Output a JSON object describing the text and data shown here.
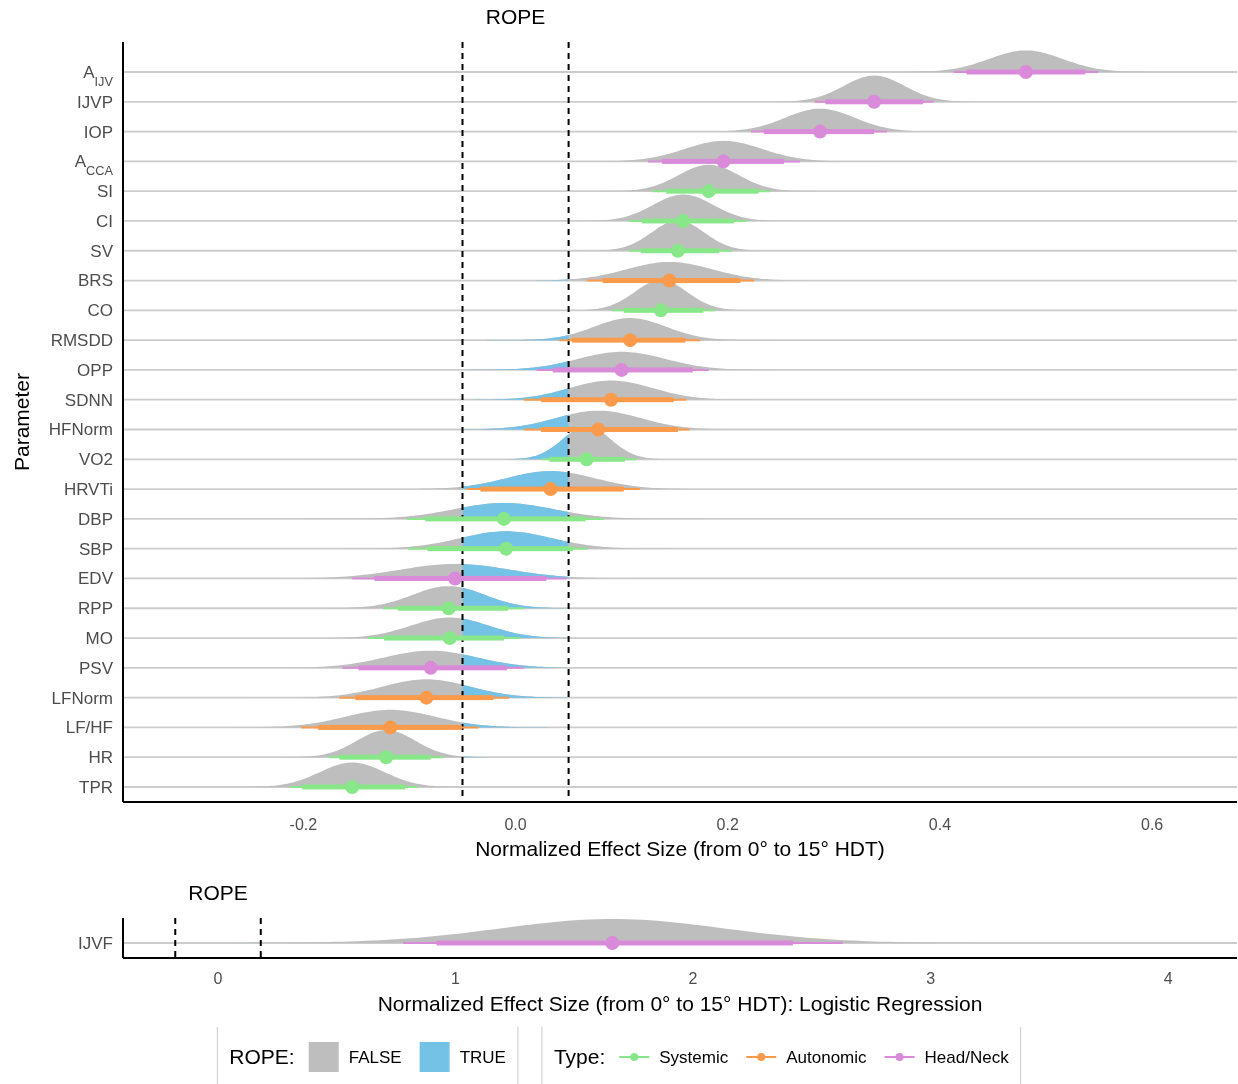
{
  "chart_data": [
    {
      "type": "scatter",
      "orientation": "horizontal",
      "xlabel": "Normalized Effect Size (from 0° to 15° HDT)",
      "ylabel": "Parameter",
      "legend_title": "ROPE:",
      "legend": "bottom",
      "grid": "y",
      "marker": "circle",
      "annotations": [
        "ROPE",
        "Type:"
      ],
      "categories": [
        "A$_{IJV}$",
        "IJVP",
        "IOP",
        "A$_{CCA}$",
        "SI",
        "CI",
        "SV",
        "BRS",
        "CO",
        "RMSDD",
        "OPP",
        "SDNN",
        "HFNorm",
        "VO2",
        "HRVTi",
        "DBP",
        "SBP",
        "EDV",
        "RPP",
        "MO",
        "PSV",
        "LFNorm",
        "LF/HF",
        "HR",
        "TPR"
      ],
      "xlim": [
        -0.37,
        0.68
      ],
      "xticks": [
        -0.2,
        {
          "value": 0,
          "label": "0.0"
        },
        0.2,
        0.4,
        0.6
      ],
      "ref_lines": [
        {
          "axis": "x",
          "value": -0.05,
          "line_style": "dashed",
          "color": "#000000"
        },
        {
          "axis": "x",
          "value": 0.05,
          "line_style": "dashed",
          "color": "#000000"
        }
      ],
      "series": [
        {
          "name": "FALSE",
          "type": "area",
          "color": "#bebebe",
          "values": [
            null,
            null,
            null,
            null,
            null,
            null,
            null,
            null,
            null,
            null,
            null,
            null,
            null,
            null,
            null,
            null,
            null,
            null,
            null,
            null,
            null,
            null,
            null,
            null,
            null
          ]
        },
        {
          "name": "TRUE",
          "type": "area",
          "color": "#74c2e6",
          "values": [
            null,
            null,
            null,
            null,
            null,
            null,
            null,
            null,
            null,
            null,
            null,
            null,
            null,
            null,
            null,
            null,
            null,
            null,
            null,
            null,
            null,
            null,
            null,
            null,
            null
          ]
        },
        {
          "name": "Systemic",
          "color": "#88e788",
          "values": [
            null,
            null,
            null,
            null,
            0.182,
            0.158,
            0.153,
            null,
            0.137,
            null,
            null,
            null,
            null,
            0.067,
            null,
            -0.011,
            -0.009,
            null,
            -0.063,
            -0.062,
            null,
            null,
            null,
            -0.122,
            -0.154
          ],
          "errors": [
            null,
            null,
            null,
            null,
            [
              0.129,
              0.24
            ],
            [
              0.107,
              0.218
            ],
            [
              0.107,
              0.204
            ],
            null,
            [
              0.091,
              0.188
            ],
            null,
            null,
            null,
            null,
            [
              0.025,
              0.114
            ],
            null,
            [
              -0.102,
              0.083
            ],
            [
              -0.101,
              0.068
            ],
            null,
            [
              -0.125,
              0.008
            ],
            [
              -0.139,
              0.004
            ],
            null,
            null,
            null,
            [
              -0.176,
              -0.068
            ],
            [
              -0.212,
              -0.092
            ]
          ]
        },
        {
          "name": "Autonomic",
          "color": "#fb9a4b",
          "values": [
            null,
            null,
            null,
            null,
            null,
            null,
            null,
            0.145,
            null,
            0.108,
            null,
            0.09,
            0.078,
            null,
            0.033,
            null,
            null,
            null,
            null,
            null,
            null,
            -0.084,
            -0.118,
            null,
            null
          ],
          "errors": [
            null,
            null,
            null,
            null,
            null,
            null,
            null,
            [
              0.067,
              0.225
            ],
            null,
            [
              0.041,
              0.174
            ],
            null,
            [
              0.008,
              0.161
            ],
            [
              0.008,
              0.164
            ],
            null,
            [
              -0.046,
              0.117
            ],
            null,
            null,
            null,
            null,
            null,
            null,
            [
              -0.166,
              -0.006
            ],
            [
              -0.202,
              -0.035
            ],
            null,
            null
          ]
        },
        {
          "name": "Head/Neck",
          "color": "#d98ad9",
          "values": [
            0.481,
            0.338,
            0.287,
            0.196,
            null,
            null,
            null,
            null,
            null,
            null,
            0.1,
            null,
            null,
            null,
            null,
            null,
            null,
            -0.057,
            null,
            null,
            -0.08,
            null,
            null,
            null,
            null
          ],
          "errors": [
            [
              0.413,
              0.549
            ],
            [
              0.282,
              0.394
            ],
            [
              0.222,
              0.35
            ],
            [
              0.125,
              0.268
            ],
            null,
            null,
            null,
            null,
            null,
            null,
            [
              0.02,
              0.182
            ],
            null,
            null,
            null,
            null,
            null,
            null,
            [
              -0.154,
              0.048
            ],
            null,
            null,
            [
              -0.163,
              0.008
            ],
            null,
            null,
            null,
            null
          ]
        },
        {
          "type": "bar",
          "color": "#88e788",
          "base": [
            null,
            null,
            null,
            null,
            0.142,
            0.119,
            0.118,
            null,
            0.102,
            null,
            null,
            null,
            null,
            0.032,
            null,
            -0.085,
            -0.083,
            null,
            -0.111,
            -0.124,
            null,
            null,
            null,
            -0.166,
            -0.201
          ],
          "values": [
            null,
            null,
            null,
            null,
            0.087,
            0.087,
            0.074,
            null,
            0.075,
            null,
            null,
            null,
            null,
            0.071,
            null,
            0.151,
            0.137,
            null,
            0.104,
            0.113,
            null,
            null,
            null,
            0.086,
            0.097
          ]
        },
        {
          "type": "bar",
          "color": "#fb9a4b",
          "base": [
            null,
            null,
            null,
            null,
            null,
            null,
            null,
            0.082,
            null,
            0.053,
            null,
            0.024,
            0.024,
            null,
            -0.033,
            null,
            null,
            null,
            null,
            null,
            null,
            -0.151,
            -0.186,
            null,
            null
          ],
          "values": [
            null,
            null,
            null,
            null,
            null,
            null,
            null,
            0.13,
            null,
            0.107,
            null,
            0.125,
            0.129,
            null,
            0.135,
            null,
            null,
            null,
            null,
            null,
            null,
            0.13,
            0.135,
            null,
            null
          ]
        },
        {
          "type": "bar",
          "color": "#d98ad9",
          "base": [
            0.425,
            0.292,
            0.234,
            0.138,
            null,
            null,
            null,
            null,
            null,
            null,
            0.035,
            null,
            null,
            null,
            null,
            null,
            null,
            -0.133,
            null,
            null,
            -0.148,
            null,
            null,
            null,
            null
          ],
          "values": [
            0.112,
            0.092,
            0.104,
            0.115,
            null,
            null,
            null,
            null,
            null,
            null,
            0.132,
            null,
            null,
            null,
            null,
            null,
            null,
            0.162,
            null,
            null,
            0.14,
            null,
            null,
            null,
            null
          ]
        }
      ]
    },
    {
      "type": "scatter",
      "orientation": "horizontal",
      "xlabel": "Normalized Effect Size (from 0° to 15° HDT): Logistic Regression",
      "grid": "y",
      "marker": "circle",
      "categories": [
        "IJVF"
      ],
      "xlim": [
        -0.4,
        4.29
      ],
      "xticks": [
        0,
        1,
        2,
        3,
        4
      ],
      "annotations": [
        "ROPE"
      ],
      "ref_lines": [
        {
          "axis": "x",
          "value": -0.18,
          "line_style": "dashed",
          "color": "#000000"
        },
        {
          "axis": "x",
          "value": 0.18,
          "line_style": "dashed",
          "color": "#000000"
        }
      ],
      "series": [
        {
          "type": "area",
          "color": "#bebebe",
          "values": [
            null
          ]
        },
        {
          "type": "area",
          "color": "#74c2e6",
          "values": [
            null
          ]
        },
        {
          "color": "#d98ad9",
          "values": [
            1.66
          ],
          "errors": [
            [
              0.78,
              2.63
            ]
          ]
        },
        {
          "type": "bar",
          "color": "#d98ad9",
          "base": [
            0.92
          ],
          "values": [
            1.5
          ]
        }
      ]
    }
  ]
}
